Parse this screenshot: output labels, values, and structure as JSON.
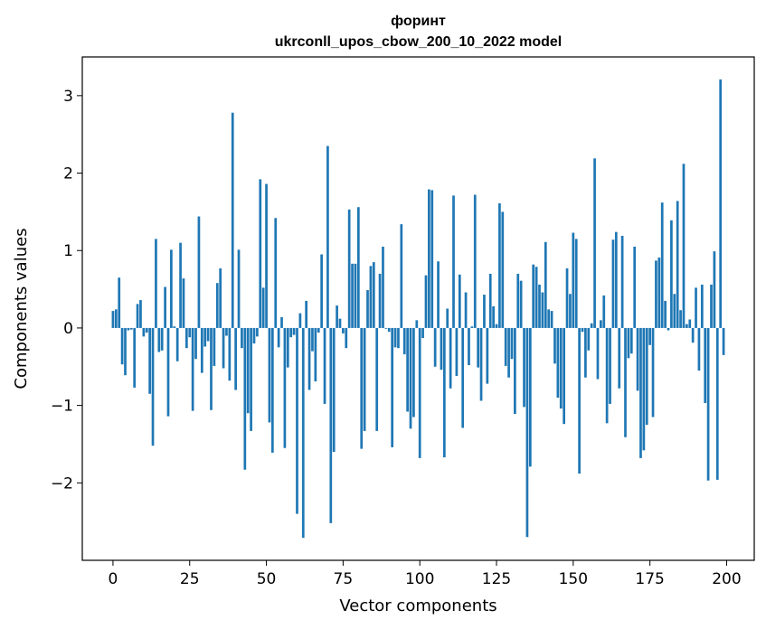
{
  "chart_data": {
    "type": "bar",
    "title": "форинт",
    "subtitle": "ukrconll_upos_cbow_200_10_2022 model",
    "xlabel": "Vector components",
    "ylabel": "Components values",
    "xlim": [
      -10,
      209
    ],
    "ylim": [
      -3.0,
      3.5
    ],
    "xticks": [
      0,
      25,
      50,
      75,
      100,
      125,
      150,
      175,
      200
    ],
    "yticks": [
      -2,
      -1,
      0,
      1,
      2,
      3
    ],
    "ytick_labels": [
      "−2",
      "−1",
      "0",
      "1",
      "2",
      "3"
    ],
    "grid": false,
    "color": "#1f77b4",
    "x": [
      0,
      1,
      2,
      3,
      4,
      5,
      6,
      7,
      8,
      9,
      10,
      11,
      12,
      13,
      14,
      15,
      16,
      17,
      18,
      19,
      20,
      21,
      22,
      23,
      24,
      25,
      26,
      27,
      28,
      29,
      30,
      31,
      32,
      33,
      34,
      35,
      36,
      37,
      38,
      39,
      40,
      41,
      42,
      43,
      44,
      45,
      46,
      47,
      48,
      49,
      50,
      51,
      52,
      53,
      54,
      55,
      56,
      57,
      58,
      59,
      60,
      61,
      62,
      63,
      64,
      65,
      66,
      67,
      68,
      69,
      70,
      71,
      72,
      73,
      74,
      75,
      76,
      77,
      78,
      79,
      80,
      81,
      82,
      83,
      84,
      85,
      86,
      87,
      88,
      89,
      90,
      91,
      92,
      93,
      94,
      95,
      96,
      97,
      98,
      99,
      100,
      101,
      102,
      103,
      104,
      105,
      106,
      107,
      108,
      109,
      110,
      111,
      112,
      113,
      114,
      115,
      116,
      117,
      118,
      119,
      120,
      121,
      122,
      123,
      124,
      125,
      126,
      127,
      128,
      129,
      130,
      131,
      132,
      133,
      134,
      135,
      136,
      137,
      138,
      139,
      140,
      141,
      142,
      143,
      144,
      145,
      146,
      147,
      148,
      149,
      150,
      151,
      152,
      153,
      154,
      155,
      156,
      157,
      158,
      159,
      160,
      161,
      162,
      163,
      164,
      165,
      166,
      167,
      168,
      169,
      170,
      171,
      172,
      173,
      174,
      175,
      176,
      177,
      178,
      179,
      180,
      181,
      182,
      183,
      184,
      185,
      186,
      187,
      188,
      189,
      190,
      191,
      192,
      193,
      194,
      195,
      196,
      197,
      198,
      199
    ],
    "values": [
      0.22,
      0.24,
      0.65,
      -0.47,
      -0.61,
      -0.03,
      -0.02,
      -0.77,
      0.31,
      0.36,
      -0.11,
      -0.06,
      -0.85,
      -1.52,
      1.15,
      -0.31,
      -0.29,
      0.53,
      -1.14,
      1.01,
      0.02,
      -0.43,
      1.1,
      0.64,
      -0.26,
      -0.12,
      -1.07,
      -0.4,
      1.44,
      -0.58,
      -0.24,
      -0.17,
      -1.06,
      -0.49,
      0.58,
      0.77,
      -0.52,
      -0.1,
      -0.68,
      2.78,
      -0.8,
      1.01,
      -0.26,
      -1.83,
      -1.1,
      -1.33,
      -0.2,
      -0.11,
      1.92,
      0.52,
      1.86,
      -1.22,
      -1.61,
      1.42,
      -0.25,
      0.14,
      -1.55,
      -0.51,
      -0.12,
      -0.09,
      -2.4,
      0.19,
      -2.71,
      0.35,
      -0.8,
      -0.3,
      -0.69,
      -0.06,
      0.95,
      -0.98,
      2.35,
      -2.52,
      -1.6,
      0.29,
      0.12,
      -0.07,
      -0.26,
      1.53,
      0.83,
      0.83,
      1.56,
      -1.56,
      -1.33,
      0.49,
      0.8,
      0.85,
      -1.33,
      0.7,
      1.05,
      -0.01,
      -0.05,
      -1.54,
      -0.25,
      -0.26,
      1.34,
      -0.34,
      -1.08,
      -1.3,
      -1.15,
      0.1,
      -1.68,
      -0.13,
      0.68,
      1.79,
      1.78,
      -0.5,
      0.86,
      -0.54,
      -1.67,
      0.25,
      -0.78,
      1.71,
      -0.62,
      0.69,
      -1.29,
      0.46,
      -0.48,
      0.02,
      1.72,
      -0.51,
      -0.94,
      0.43,
      -0.72,
      0.7,
      0.28,
      0.05,
      1.61,
      1.5,
      -0.49,
      -0.64,
      -0.4,
      -1.11,
      0.7,
      0.61,
      -1.02,
      -2.7,
      -1.79,
      0.82,
      0.79,
      0.56,
      0.46,
      1.11,
      0.24,
      0.22,
      -0.46,
      -0.9,
      -1.04,
      -1.24,
      0.77,
      0.44,
      1.23,
      1.15,
      -1.88,
      -0.05,
      -0.64,
      -0.29,
      0.06,
      2.19,
      -0.66,
      0.1,
      0.42,
      -1.23,
      -0.98,
      1.14,
      1.24,
      -0.78,
      1.19,
      -1.41,
      -0.39,
      -0.33,
      1.05,
      -0.81,
      -1.68,
      -1.58,
      -1.25,
      -0.22,
      -1.15,
      0.87,
      0.91,
      1.62,
      0.35,
      -0.03,
      1.39,
      0.44,
      1.64,
      0.23,
      2.12,
      0.05,
      0.11,
      -0.19,
      0.52,
      -0.55,
      0.56,
      -0.97,
      -1.97,
      0.56,
      0.99,
      -1.96,
      3.21,
      -0.35
    ]
  }
}
